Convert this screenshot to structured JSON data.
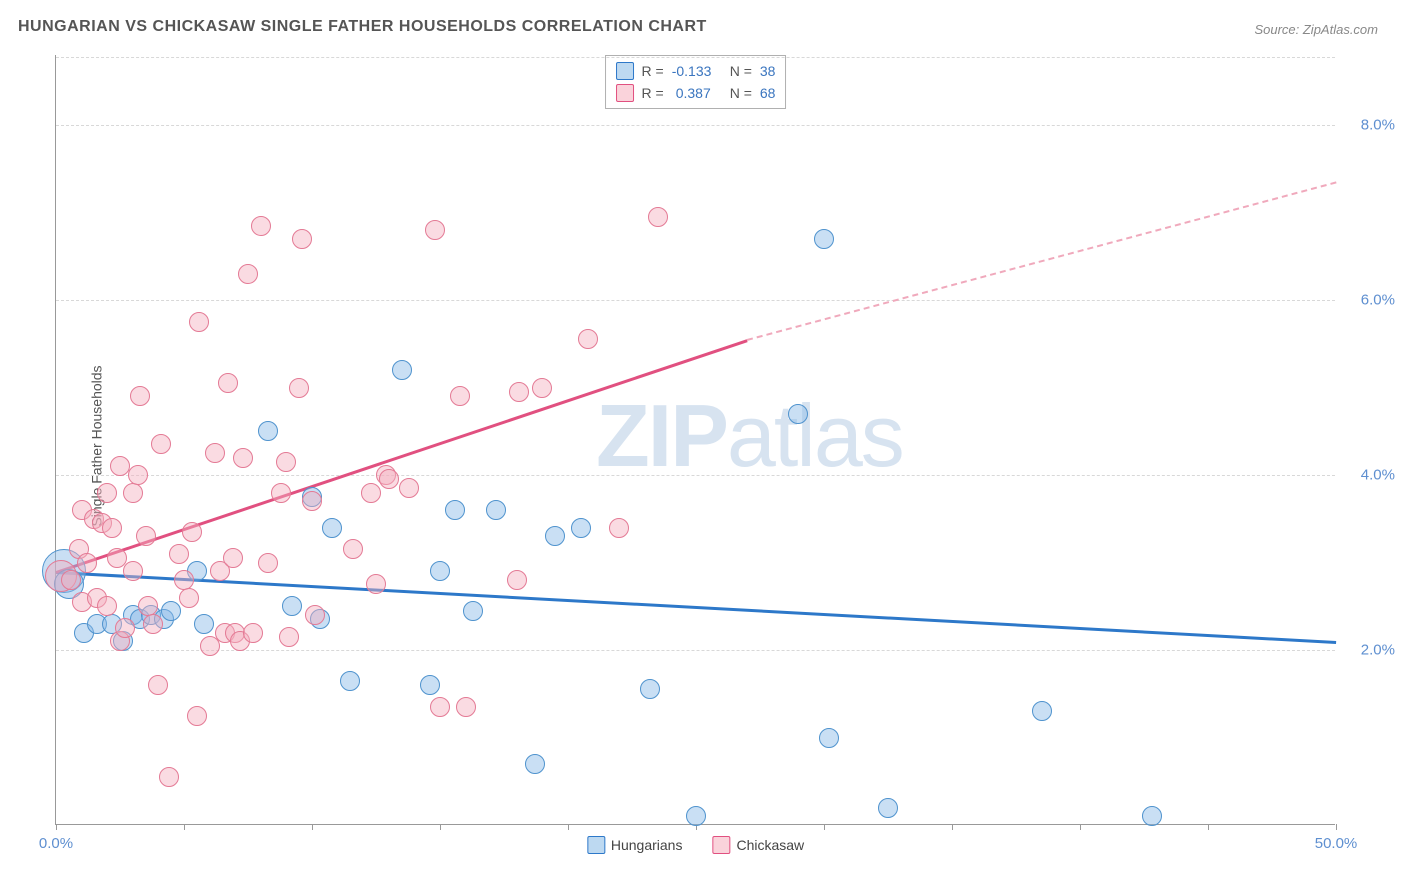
{
  "title": "HUNGARIAN VS CHICKASAW SINGLE FATHER HOUSEHOLDS CORRELATION CHART",
  "source_prefix": "Source: ",
  "source_name": "ZipAtlas.com",
  "y_axis_label": "Single Father Households",
  "watermark_zip": "ZIP",
  "watermark_atlas": "atlas",
  "chart": {
    "type": "scatter",
    "xlim": [
      0,
      50
    ],
    "ylim": [
      0,
      8.8
    ],
    "x_ticks": [
      0,
      5,
      10,
      15,
      20,
      25,
      30,
      35,
      40,
      45,
      50
    ],
    "x_tick_labels": {
      "0": "0.0%",
      "50": "50.0%"
    },
    "y_gridlines": [
      2,
      4,
      6,
      8
    ],
    "y_tick_labels": {
      "2": "2.0%",
      "4": "4.0%",
      "6": "6.0%",
      "8": "8.0%"
    },
    "background_color": "#ffffff",
    "grid_color": "#d8d8d8",
    "axis_color": "#999999",
    "tick_label_color": "#5e8fd0",
    "point_radius": 10,
    "series": [
      {
        "name": "Hungarians",
        "fill": "rgba(135,185,230,0.45)",
        "stroke": "#4f93ce",
        "r_value": "-0.133",
        "n_value": "38",
        "trend": {
          "x1": 0,
          "y1": 2.9,
          "x2": 50,
          "y2": 2.1,
          "color": "#2d78c9",
          "width": 3
        },
        "points": [
          [
            0.3,
            2.9,
            22
          ],
          [
            0.5,
            2.75,
            15
          ],
          [
            1.1,
            2.2
          ],
          [
            1.6,
            2.3
          ],
          [
            2.2,
            2.3
          ],
          [
            2.6,
            2.1
          ],
          [
            3.0,
            2.4
          ],
          [
            3.3,
            2.35
          ],
          [
            3.7,
            2.4
          ],
          [
            4.2,
            2.35
          ],
          [
            4.5,
            2.45
          ],
          [
            5.5,
            2.9
          ],
          [
            5.8,
            2.3
          ],
          [
            8.3,
            4.5
          ],
          [
            9.2,
            2.5
          ],
          [
            10.0,
            3.75
          ],
          [
            10.3,
            2.35
          ],
          [
            10.8,
            3.4
          ],
          [
            11.5,
            1.65
          ],
          [
            13.5,
            5.2
          ],
          [
            14.6,
            1.6
          ],
          [
            15.0,
            2.9
          ],
          [
            15.6,
            3.6
          ],
          [
            16.3,
            2.45
          ],
          [
            17.2,
            3.6
          ],
          [
            18.7,
            0.7
          ],
          [
            19.5,
            3.3
          ],
          [
            20.5,
            3.4
          ],
          [
            23.2,
            1.55
          ],
          [
            25.0,
            0.1
          ],
          [
            29.0,
            4.7
          ],
          [
            30.0,
            6.7
          ],
          [
            30.2,
            1.0
          ],
          [
            32.5,
            0.2
          ],
          [
            38.5,
            1.3
          ],
          [
            42.8,
            0.1
          ]
        ]
      },
      {
        "name": "Chickasaw",
        "fill": "rgba(245,175,190,0.45)",
        "stroke": "#e47a95",
        "r_value": "0.387",
        "n_value": "68",
        "trend": {
          "x1": 0,
          "y1": 2.9,
          "x2": 27,
          "y2": 5.55,
          "color": "#e15080",
          "width": 3,
          "dash_x2": 50,
          "dash_y2": 7.35
        },
        "points": [
          [
            0.2,
            2.85,
            16
          ],
          [
            0.6,
            2.8
          ],
          [
            0.9,
            3.15
          ],
          [
            1.0,
            2.55
          ],
          [
            1.0,
            3.6
          ],
          [
            1.2,
            3.0
          ],
          [
            1.5,
            3.5
          ],
          [
            1.6,
            2.6
          ],
          [
            1.8,
            3.45
          ],
          [
            2.0,
            2.5
          ],
          [
            2.0,
            3.8
          ],
          [
            2.2,
            3.4
          ],
          [
            2.4,
            3.05
          ],
          [
            2.5,
            4.1
          ],
          [
            2.5,
            2.1
          ],
          [
            2.7,
            2.25
          ],
          [
            3.0,
            3.8
          ],
          [
            3.0,
            2.9
          ],
          [
            3.2,
            4.0
          ],
          [
            3.3,
            4.9
          ],
          [
            3.5,
            3.3
          ],
          [
            3.6,
            2.5
          ],
          [
            3.8,
            2.3
          ],
          [
            4.0,
            1.6
          ],
          [
            4.1,
            4.35
          ],
          [
            4.4,
            0.55
          ],
          [
            4.8,
            3.1
          ],
          [
            5.0,
            2.8
          ],
          [
            5.2,
            2.6
          ],
          [
            5.3,
            3.35
          ],
          [
            5.5,
            1.25
          ],
          [
            5.6,
            5.75
          ],
          [
            6.0,
            2.05
          ],
          [
            6.2,
            4.25
          ],
          [
            6.4,
            2.9
          ],
          [
            6.6,
            2.2
          ],
          [
            6.7,
            5.05
          ],
          [
            6.9,
            3.05
          ],
          [
            7.0,
            2.2
          ],
          [
            7.2,
            2.1
          ],
          [
            7.3,
            4.2
          ],
          [
            7.5,
            6.3
          ],
          [
            7.7,
            2.2
          ],
          [
            8.0,
            6.85
          ],
          [
            8.3,
            3.0
          ],
          [
            8.8,
            3.8
          ],
          [
            9.0,
            4.15
          ],
          [
            9.1,
            2.15
          ],
          [
            9.5,
            5.0
          ],
          [
            9.6,
            6.7
          ],
          [
            10.0,
            3.7
          ],
          [
            10.1,
            2.4
          ],
          [
            11.6,
            3.15
          ],
          [
            12.3,
            3.8
          ],
          [
            12.5,
            2.75
          ],
          [
            12.9,
            4.0
          ],
          [
            13.0,
            3.95
          ],
          [
            13.8,
            3.85
          ],
          [
            14.8,
            6.8
          ],
          [
            15.0,
            1.35
          ],
          [
            15.8,
            4.9
          ],
          [
            16.0,
            1.35
          ],
          [
            18.0,
            2.8
          ],
          [
            18.1,
            4.95
          ],
          [
            19.0,
            5.0
          ],
          [
            20.8,
            5.55
          ],
          [
            22.0,
            3.4
          ],
          [
            23.5,
            6.95
          ]
        ]
      }
    ]
  },
  "stats_labels": {
    "R": "R =",
    "N": "N ="
  },
  "legend": [
    {
      "label": "Hungarians",
      "swatch": "sw-blue"
    },
    {
      "label": "Chickasaw",
      "swatch": "sw-pink"
    }
  ]
}
